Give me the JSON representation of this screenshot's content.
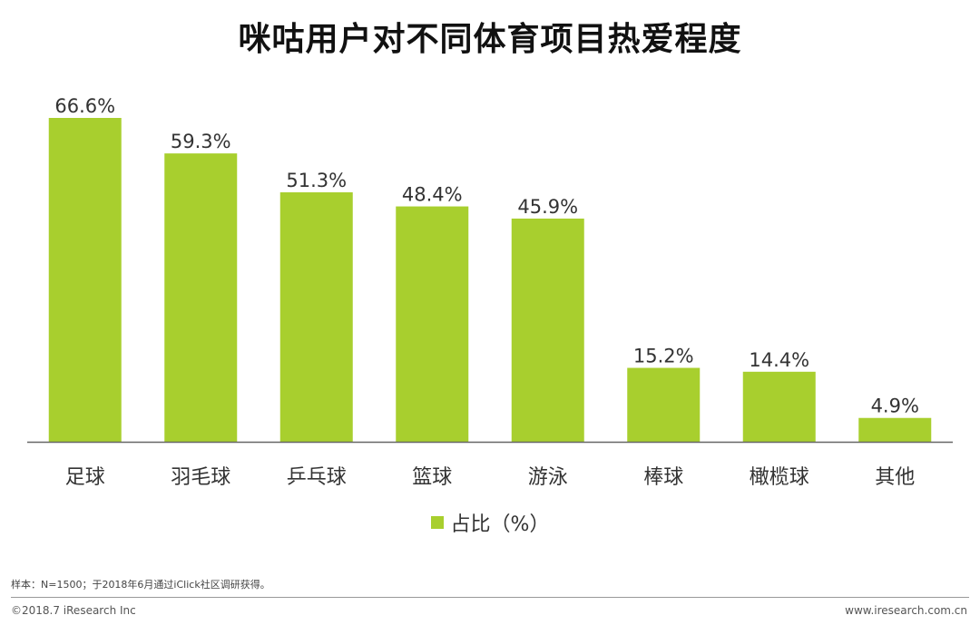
{
  "chart_data": {
    "type": "bar",
    "title": "咪咕用户对不同体育项目热爱程度",
    "categories": [
      "足球",
      "羽毛球",
      "乒乓球",
      "篮球",
      "游泳",
      "棒球",
      "橄榄球",
      "其他"
    ],
    "series": [
      {
        "name": "占比（%）",
        "values": [
          66.6,
          59.3,
          51.3,
          48.4,
          45.9,
          15.2,
          14.4,
          4.9
        ],
        "labels": [
          "66.6%",
          "59.3%",
          "51.3%",
          "48.4%",
          "45.9%",
          "15.2%",
          "14.4%",
          "4.9%"
        ]
      }
    ],
    "xlabel": "",
    "ylabel": "",
    "ylim": [
      0,
      66.6
    ],
    "grid": false,
    "legend": "bottom-center",
    "bar_color": "#A8CF2E",
    "axis_color": "#666666"
  },
  "note": "样本：N=1500；于2018年6月通过iClick社区调研获得。",
  "footer": {
    "left": "©2018.7 iResearch Inc",
    "right": "www.iresearch.com.cn"
  }
}
